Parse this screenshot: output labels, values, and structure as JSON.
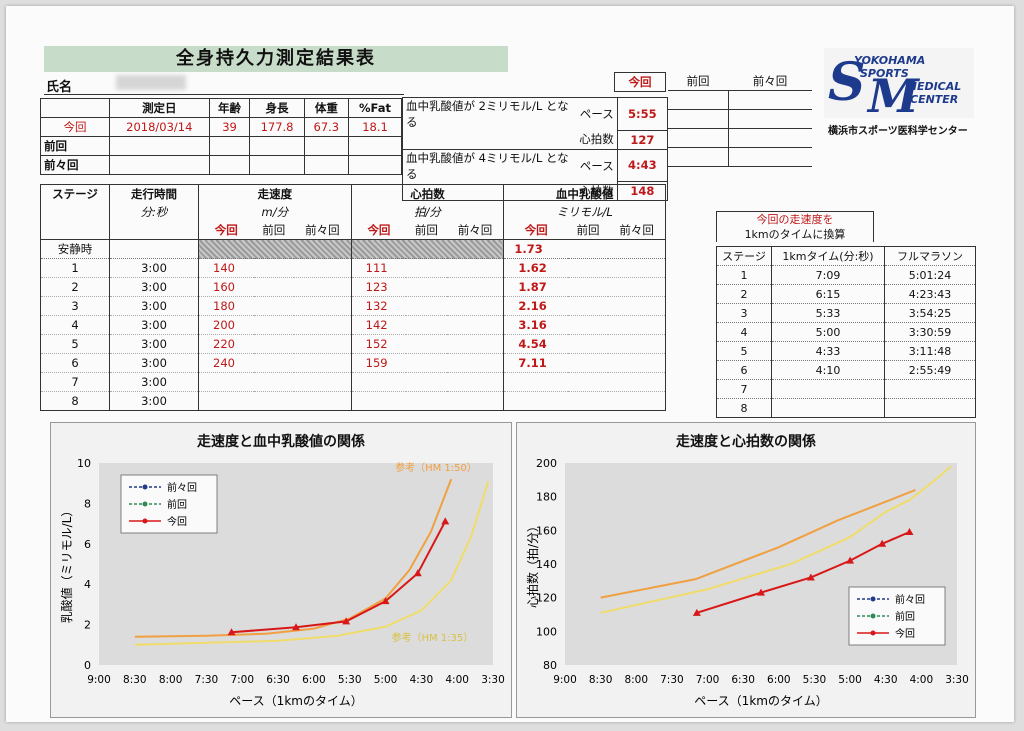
{
  "title": "全身持久力測定結果表",
  "name_label": "氏名",
  "summary_table": {
    "headers": [
      "測定日",
      "年齢",
      "身長",
      "体重",
      "%Fat"
    ],
    "rows": [
      {
        "label": "今回",
        "date": "2018/03/14",
        "age": "39",
        "height": "177.8",
        "weight": "67.3",
        "fat": "18.1"
      },
      {
        "label": "前回",
        "date": "",
        "age": "",
        "height": "",
        "weight": "",
        "fat": ""
      },
      {
        "label": "前々回",
        "date": "",
        "age": "",
        "height": "",
        "weight": "",
        "fat": ""
      }
    ]
  },
  "lactate_threshold": {
    "col_headers": [
      "今回",
      "前回",
      "前々回"
    ],
    "row2_label": "血中乳酸値が 2ミリモル/L となる",
    "row4_label": "血中乳酸値が 4ミリモル/L となる",
    "pace_label": "ペース",
    "hr_label": "心拍数",
    "lt2_pace": "5:55",
    "lt2_hr": "127",
    "lt4_pace": "4:43",
    "lt4_hr": "148"
  },
  "logo": {
    "lines": [
      "YOKOHAMA",
      "SPORTS",
      "MEDICAL",
      "CENTER"
    ],
    "caption": "横浜市スポーツ医科学センター"
  },
  "stage_table": {
    "h_stage": "ステージ",
    "h_time": "走行時間",
    "h_time_unit": "分:秒",
    "h_speed": "走速度",
    "h_speed_unit": "m/分",
    "h_hr": "心拍数",
    "h_hr_unit": "拍/分",
    "h_lac": "血中乳酸値",
    "h_lac_unit": "ミリモル/L",
    "sub": [
      "今回",
      "前回",
      "前々回"
    ],
    "rest_label": "安静時",
    "rest_lac": "1.73",
    "rows": [
      {
        "stage": "1",
        "time": "3:00",
        "speed": "140",
        "hr": "111",
        "lac": "1.62"
      },
      {
        "stage": "2",
        "time": "3:00",
        "speed": "160",
        "hr": "123",
        "lac": "1.87"
      },
      {
        "stage": "3",
        "time": "3:00",
        "speed": "180",
        "hr": "132",
        "lac": "2.16"
      },
      {
        "stage": "4",
        "time": "3:00",
        "speed": "200",
        "hr": "142",
        "lac": "3.16"
      },
      {
        "stage": "5",
        "time": "3:00",
        "speed": "220",
        "hr": "152",
        "lac": "4.54"
      },
      {
        "stage": "6",
        "time": "3:00",
        "speed": "240",
        "hr": "159",
        "lac": "7.11"
      },
      {
        "stage": "7",
        "time": "3:00",
        "speed": "",
        "hr": "",
        "lac": ""
      },
      {
        "stage": "8",
        "time": "3:00",
        "speed": "",
        "hr": "",
        "lac": ""
      }
    ]
  },
  "conversion_table": {
    "title1": "今回の走速度を",
    "title2": "1kmのタイムに換算",
    "headers": [
      "ステージ",
      "1kmタイム(分:秒)",
      "フルマラソン"
    ],
    "rows": [
      {
        "stage": "1",
        "km": "7:09",
        "marathon": "5:01:24"
      },
      {
        "stage": "2",
        "km": "6:15",
        "marathon": "4:23:43"
      },
      {
        "stage": "3",
        "km": "5:33",
        "marathon": "3:54:25"
      },
      {
        "stage": "4",
        "km": "5:00",
        "marathon": "3:30:59"
      },
      {
        "stage": "5",
        "km": "4:33",
        "marathon": "3:11:48"
      },
      {
        "stage": "6",
        "km": "4:10",
        "marathon": "2:55:49"
      },
      {
        "stage": "7",
        "km": "",
        "marathon": ""
      },
      {
        "stage": "8",
        "km": "",
        "marathon": ""
      }
    ]
  },
  "chart_data": [
    {
      "type": "line",
      "title": "走速度と血中乳酸値の関係",
      "xlabel": "ペース（1kmのタイム）",
      "ylabel": "乳酸値（ミリモル/L）",
      "x_ticks": [
        "9:00",
        "8:30",
        "8:00",
        "7:30",
        "7:00",
        "6:30",
        "6:00",
        "5:30",
        "5:00",
        "4:30",
        "4:00",
        "3:30"
      ],
      "x_range_sec": [
        540,
        210
      ],
      "ylim": [
        0,
        10
      ],
      "y_ticks": [
        0,
        2,
        4,
        6,
        8,
        10
      ],
      "legend": [
        "前々回",
        "前回",
        "今回"
      ],
      "series": [
        {
          "name": "今回",
          "color": "#d81818",
          "x": [
            "7:09",
            "6:15",
            "5:33",
            "5:00",
            "4:33",
            "4:10"
          ],
          "x_sec": [
            429,
            375,
            333,
            300,
            273,
            250
          ],
          "values": [
            1.62,
            1.87,
            2.16,
            3.16,
            4.54,
            7.11
          ]
        }
      ],
      "references": [
        {
          "name": "参考（HM 1:50）",
          "color": "#f0a040",
          "x_sec": [
            510,
            450,
            400,
            360,
            330,
            300,
            280,
            262,
            245
          ],
          "values": [
            1.4,
            1.45,
            1.55,
            1.8,
            2.3,
            3.3,
            4.7,
            6.6,
            9.2
          ]
        },
        {
          "name": "参考（HM 1:35）",
          "color": "#f0dc6a",
          "x_sec": [
            510,
            450,
            390,
            340,
            300,
            270,
            245,
            228,
            214
          ],
          "values": [
            1.0,
            1.1,
            1.2,
            1.45,
            1.9,
            2.7,
            4.2,
            6.4,
            9.1
          ]
        }
      ]
    },
    {
      "type": "line",
      "title": "走速度と心拍数の関係",
      "xlabel": "ペース（1kmのタイム）",
      "ylabel": "心拍数（拍/分）",
      "x_ticks": [
        "9:00",
        "8:30",
        "8:00",
        "7:30",
        "7:00",
        "6:30",
        "6:00",
        "5:30",
        "5:00",
        "4:30",
        "4:00",
        "3:30"
      ],
      "x_range_sec": [
        540,
        210
      ],
      "ylim": [
        80,
        200
      ],
      "y_ticks": [
        80,
        100,
        120,
        140,
        160,
        180,
        200
      ],
      "legend": [
        "前々回",
        "前回",
        "今回"
      ],
      "series": [
        {
          "name": "今回",
          "color": "#d81818",
          "x": [
            "7:09",
            "6:15",
            "5:33",
            "5:00",
            "4:33",
            "4:10"
          ],
          "x_sec": [
            429,
            375,
            333,
            300,
            273,
            250
          ],
          "values": [
            111,
            123,
            132,
            142,
            152,
            159
          ]
        }
      ],
      "references": [
        {
          "name": "",
          "color": "#f0a040",
          "x_sec": [
            510,
            430,
            360,
            310,
            270,
            245
          ],
          "values": [
            120,
            131,
            150,
            166,
            177,
            184
          ]
        },
        {
          "name": "",
          "color": "#f0dc6a",
          "x_sec": [
            510,
            420,
            350,
            300,
            270,
            250,
            230,
            215
          ],
          "values": [
            111,
            125,
            140,
            156,
            171,
            178,
            189,
            198
          ]
        }
      ]
    }
  ],
  "colors": {
    "today_red": "#c01818",
    "header_green": "#c7dcc9",
    "logo_blue": "#1d3a8c",
    "chart_bg": "#dcdcdc"
  }
}
